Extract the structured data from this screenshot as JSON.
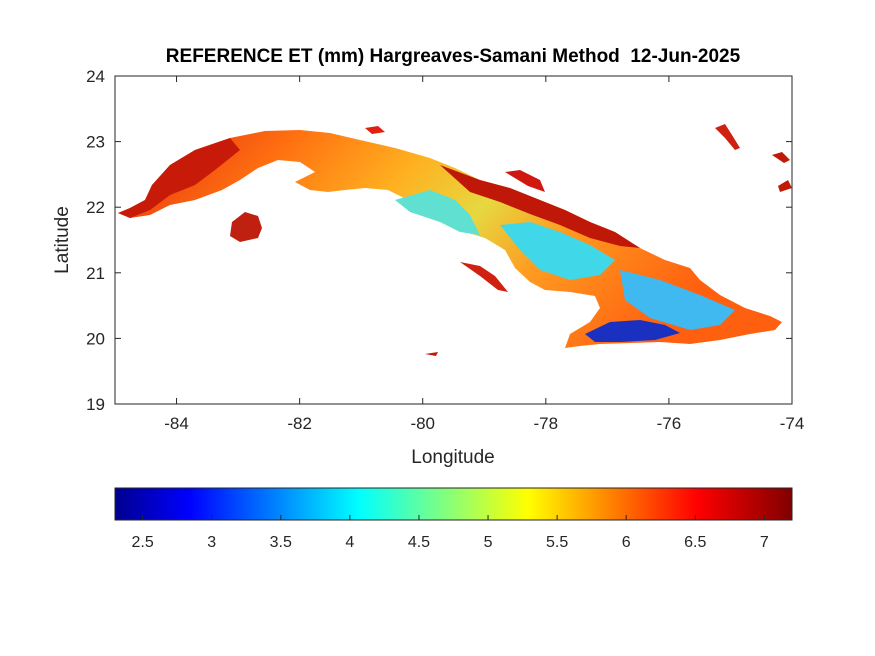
{
  "title": "REFERENCE ET (mm) Hargreaves-Samani Method  12-Jun-2025",
  "map": {
    "xlabel": "Longitude",
    "ylabel": "Latitude",
    "xlim": [
      -85,
      -74
    ],
    "ylim": [
      19,
      24
    ],
    "xticks": [
      {
        "value": -84,
        "label": "-84"
      },
      {
        "value": -82,
        "label": "-82"
      },
      {
        "value": -80,
        "label": "-80"
      },
      {
        "value": -78,
        "label": "-78"
      },
      {
        "value": -76,
        "label": "-76"
      },
      {
        "value": -74,
        "label": "-74"
      }
    ],
    "yticks": [
      {
        "value": 19,
        "label": "19"
      },
      {
        "value": 20,
        "label": "20"
      },
      {
        "value": 21,
        "label": "21"
      },
      {
        "value": 22,
        "label": "22"
      },
      {
        "value": 23,
        "label": "23"
      },
      {
        "value": 24,
        "label": "24"
      }
    ],
    "grid": false,
    "colormap": "jet",
    "colors": {
      "high_et_dark_red": "#b00000",
      "red": "#e82a10",
      "orange": "#ff8a10",
      "yellow": "#ffd400",
      "cyan": "#30e0e0",
      "blue": "#2a70ff",
      "dark_blue": "#0a1aa0"
    },
    "regions_description_note_free": true
  },
  "colorbar": {
    "range": [
      2.3,
      7.2
    ],
    "ticks": [
      {
        "value": 2.5,
        "label": "2.5"
      },
      {
        "value": 3,
        "label": "3"
      },
      {
        "value": 3.5,
        "label": "3.5"
      },
      {
        "value": 4,
        "label": "4"
      },
      {
        "value": 4.5,
        "label": "4.5"
      },
      {
        "value": 5,
        "label": "5"
      },
      {
        "value": 5.5,
        "label": "5.5"
      },
      {
        "value": 6,
        "label": "6"
      },
      {
        "value": 6.5,
        "label": "6.5"
      },
      {
        "value": 7,
        "label": "7"
      }
    ],
    "placement": "bottom"
  }
}
